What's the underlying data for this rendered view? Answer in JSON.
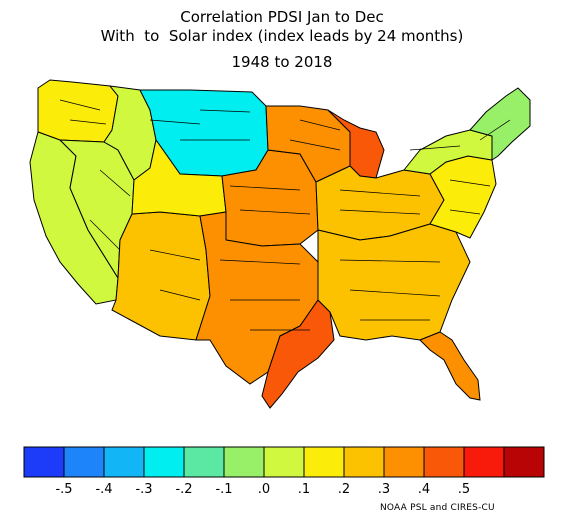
{
  "title": {
    "line1": "Correlation PDSI Jan to Dec",
    "line2": "With  to  Solar index (index leads by 24 months)",
    "line3": "1948 to 2018"
  },
  "credit": "NOAA PSL and CIRES-CU",
  "colorbar": {
    "colors": [
      "#1c3cfa",
      "#1e84fa",
      "#12b6f6",
      "#00eef0",
      "#5ae8a2",
      "#98ef68",
      "#d0f83e",
      "#fcec0a",
      "#fcc200",
      "#fc9000",
      "#f85808",
      "#f81a0a",
      "#b80404"
    ],
    "tick_labels": [
      "-.5",
      "-.4",
      "-.3",
      "-.2",
      "-.1",
      ".0",
      ".1",
      ".2",
      ".3",
      ".4",
      ".5"
    ]
  },
  "map": {
    "regions": [
      {
        "name": "pacific-northwest",
        "value": 0.1
      },
      {
        "name": "california",
        "value": 0.0
      },
      {
        "name": "great-basin",
        "value": 0.0
      },
      {
        "name": "southwest",
        "value": 0.2
      },
      {
        "name": "northern-rockies",
        "value": 0.05
      },
      {
        "name": "northern-plains",
        "value": -0.3
      },
      {
        "name": "central-rockies",
        "value": 0.1
      },
      {
        "name": "central-plains",
        "value": 0.3
      },
      {
        "name": "southern-plains",
        "value": 0.35
      },
      {
        "name": "texas-gulf-coast",
        "value": 0.45
      },
      {
        "name": "upper-midwest",
        "value": 0.3
      },
      {
        "name": "wisconsin-michigan",
        "value": 0.4
      },
      {
        "name": "ohio-valley",
        "value": 0.25
      },
      {
        "name": "southeast",
        "value": 0.25
      },
      {
        "name": "florida",
        "value": 0.35
      },
      {
        "name": "mid-atlantic",
        "value": 0.15
      },
      {
        "name": "northeast",
        "value": 0.0
      },
      {
        "name": "new-england",
        "value": -0.1
      }
    ]
  }
}
